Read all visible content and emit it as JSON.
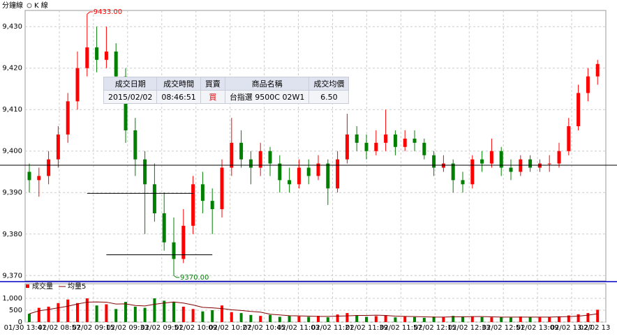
{
  "toolbar": {
    "tab1": "分鐘線",
    "tab2": "K 線"
  },
  "trade_table": {
    "headers": [
      "成交日期",
      "成交時間",
      "買賣",
      "商品名稱",
      "成交均價"
    ],
    "row": [
      "2015/02/02",
      "08:46:51",
      "買",
      "台指選 9500C 02W1",
      "6.50"
    ]
  },
  "chart_data": {
    "type": "candlestick",
    "up_color": "#ff0000",
    "down_color": "#008000",
    "ylim": [
      9368.7,
      9433.9
    ],
    "yticks": [
      {
        "value": 9370,
        "label": "9,370"
      },
      {
        "value": 9380,
        "label": "9,380"
      },
      {
        "value": 9390,
        "label": "9,390"
      },
      {
        "value": 9400,
        "label": "9,400"
      },
      {
        "value": 9410,
        "label": "9,410"
      },
      {
        "value": 9420,
        "label": "9,420"
      },
      {
        "value": 9430,
        "label": "9,430"
      }
    ],
    "grid": true,
    "x_labels": [
      "01/30 13:41",
      "02/02 08:57",
      "02/02 09:15",
      "02/02 09:33",
      "02/02 09:51",
      "02/02 10:09",
      "02/02 10:27",
      "02/02 10:45",
      "02/02 11:03",
      "02/02 11:21",
      "02/02 11:39",
      "02/02 11:57",
      "02/02 12:15",
      "02/02 12:33",
      "02/02 12:51",
      "02/02 13:09",
      "02/02 13:27",
      "02/02 13"
    ],
    "ohlc": [
      [
        9395,
        9397,
        9390,
        9393
      ],
      [
        9393,
        9396,
        9389,
        9394
      ],
      [
        9394,
        9400,
        9392,
        9398
      ],
      [
        9398,
        9406,
        9396,
        9404
      ],
      [
        9404,
        9414,
        9402,
        9412
      ],
      [
        9412,
        9424,
        9410,
        9420
      ],
      [
        9420,
        9433,
        9418,
        9425
      ],
      [
        9425,
        9430,
        9419,
        9422
      ],
      [
        9422,
        9430,
        9420,
        9424
      ],
      [
        9424,
        9426,
        9414,
        9418
      ],
      [
        9418,
        9420,
        9402,
        9405
      ],
      [
        9405,
        9408,
        9394,
        9398
      ],
      [
        9398,
        9400,
        9380,
        9392
      ],
      [
        9392,
        9397,
        9383,
        9385
      ],
      [
        9385,
        9390,
        9376,
        9378
      ],
      [
        9378,
        9384,
        9370,
        9374
      ],
      [
        9374,
        9386,
        9373,
        9382
      ],
      [
        9382,
        9394,
        9380,
        9392
      ],
      [
        9392,
        9395,
        9385,
        9388
      ],
      [
        9388,
        9391,
        9380,
        9386
      ],
      [
        9386,
        9398,
        9384,
        9396
      ],
      [
        9396,
        9408,
        9394,
        9402
      ],
      [
        9402,
        9405,
        9396,
        9398
      ],
      [
        9398,
        9400,
        9392,
        9396
      ],
      [
        9396,
        9402,
        9394,
        9400
      ],
      [
        9400,
        9401,
        9394,
        9397
      ],
      [
        9397,
        9399,
        9390,
        9393
      ],
      [
        9393,
        9396,
        9390,
        9392
      ],
      [
        9392,
        9398,
        9391,
        9396
      ],
      [
        9396,
        9398,
        9392,
        9394
      ],
      [
        9394,
        9399,
        9393,
        9397
      ],
      [
        9397,
        9398,
        9387,
        9391
      ],
      [
        9391,
        9400,
        9390,
        9398
      ],
      [
        9398,
        9409,
        9397,
        9404
      ],
      [
        9404,
        9406,
        9400,
        9402
      ],
      [
        9402,
        9404,
        9398,
        9400
      ],
      [
        9400,
        9405,
        9399,
        9402
      ],
      [
        9402,
        9410,
        9400,
        9404
      ],
      [
        9404,
        9405,
        9399,
        9401
      ],
      [
        9401,
        9405,
        9400,
        9403
      ],
      [
        9403,
        9405,
        9400,
        9402
      ],
      [
        9402,
        9403,
        9398,
        9399
      ],
      [
        9399,
        9400,
        9394,
        9396
      ],
      [
        9396,
        9399,
        9395,
        9397
      ],
      [
        9397,
        9398,
        9390,
        9393
      ],
      [
        9393,
        9395,
        9390,
        9392
      ],
      [
        9392,
        9399,
        9391,
        9398
      ],
      [
        9398,
        9400,
        9395,
        9397
      ],
      [
        9397,
        9403,
        9396,
        9400
      ],
      [
        9400,
        9401,
        9394,
        9396
      ],
      [
        9396,
        9398,
        9393,
        9395
      ],
      [
        9395,
        9399,
        9394,
        9398
      ],
      [
        9398,
        9399,
        9395,
        9396
      ],
      [
        9396,
        9398,
        9395,
        9397
      ],
      [
        9397,
        9399,
        9395,
        9397
      ],
      [
        9397,
        9402,
        9396,
        9400
      ],
      [
        9400,
        9408,
        9399,
        9406
      ],
      [
        9406,
        9416,
        9405,
        9414
      ],
      [
        9414,
        9420,
        9412,
        9418
      ],
      [
        9418,
        9422,
        9416,
        9421
      ]
    ],
    "hlines": [
      9396.6
    ],
    "segments": [
      {
        "value": 9389.8,
        "from": 6,
        "to": 17
      },
      {
        "value": 9375,
        "from": 8,
        "to": 19
      }
    ],
    "annotations": [
      {
        "value": 9433,
        "label": "9433.00",
        "index": 6,
        "color": "#ff0000"
      },
      {
        "value": 9370,
        "label": "9370.00",
        "index": 15,
        "color": "#008000"
      }
    ],
    "volume": {
      "name": "成交量",
      "color": "#ff0000",
      "ylim": [
        0,
        1500
      ],
      "yticks": [
        0,
        500,
        {
          "value": 1000,
          "label": "1,000"
        }
      ],
      "values": [
        350,
        600,
        650,
        800,
        950,
        800,
        1000,
        700,
        750,
        550,
        850,
        650,
        600,
        1000,
        900,
        850,
        650,
        550,
        450,
        500,
        700,
        420,
        380,
        300,
        260,
        300,
        220,
        260,
        240,
        220,
        260,
        200,
        320,
        380,
        280,
        220,
        250,
        280,
        200,
        230,
        210,
        180,
        230,
        200,
        260,
        240,
        220,
        210,
        200,
        220,
        190,
        230,
        210,
        200,
        220,
        240,
        280,
        330,
        380,
        520
      ]
    },
    "volume_ma": {
      "name": "均量5",
      "color": "#800000",
      "values": [
        350,
        475,
        533,
        600,
        670,
        760,
        840,
        850,
        840,
        760,
        770,
        700,
        680,
        750,
        800,
        850,
        800,
        720,
        620,
        600,
        570,
        520,
        490,
        450,
        420,
        330,
        300,
        270,
        260,
        250,
        240,
        240,
        250,
        260,
        280,
        280,
        290,
        280,
        250,
        240,
        230,
        220,
        210,
        210,
        220,
        220,
        230,
        230,
        220,
        210,
        210,
        210,
        210,
        210,
        210,
        220,
        230,
        250,
        290,
        350
      ]
    }
  }
}
